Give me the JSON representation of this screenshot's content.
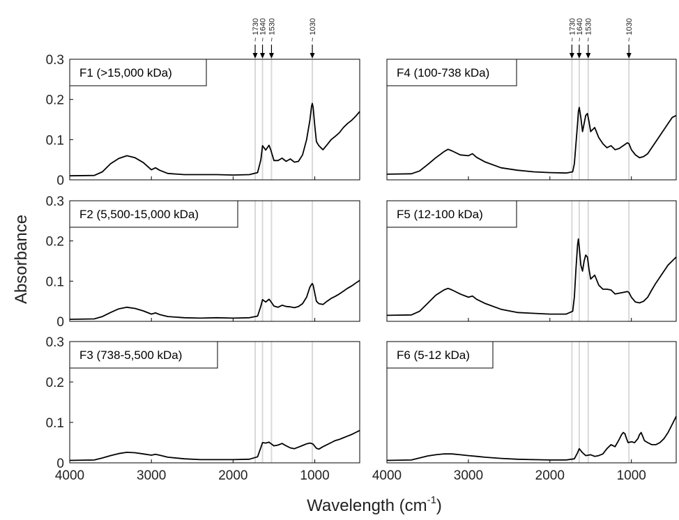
{
  "chart_data": {
    "type": "line",
    "xlabel": "Wavelength (cm",
    "xlabel_sup": "-1",
    "xlabel_close": ")",
    "ylabel": "Absorbance",
    "xlim": [
      4000,
      450
    ],
    "ylim": [
      0,
      0.3
    ],
    "x_reversed": true,
    "x_ticks": [
      4000,
      3000,
      2000,
      1000
    ],
    "y_ticks": [
      0,
      0.1,
      0.2,
      0.3
    ],
    "x_tick_labels": [
      "4000",
      "3000",
      "2000",
      "1000"
    ],
    "y_tick_labels": [
      "0",
      "0.1",
      "0.2",
      "0.3"
    ],
    "reference_lines": [
      {
        "wavenumber": 1730,
        "label": "~ 1730"
      },
      {
        "wavenumber": 1640,
        "label": "~ 1640"
      },
      {
        "wavenumber": 1530,
        "label": "~ 1530"
      },
      {
        "wavenumber": 1030,
        "label": "~ 1030"
      }
    ],
    "line_color": "#000000",
    "reference_line_color": "#d9d9d9",
    "panels": [
      {
        "id": "F1",
        "label": "F1 (>15,000 kDa)",
        "column": 0,
        "row": 0,
        "x": [
          4000,
          3700,
          3600,
          3500,
          3400,
          3300,
          3200,
          3100,
          3000,
          2950,
          2900,
          2800,
          2600,
          2400,
          2200,
          2000,
          1800,
          1700,
          1660,
          1640,
          1600,
          1560,
          1540,
          1500,
          1450,
          1400,
          1350,
          1300,
          1250,
          1200,
          1150,
          1100,
          1060,
          1040,
          1030,
          1020,
          1000,
          980,
          950,
          900,
          850,
          800,
          750,
          700,
          650,
          600,
          550,
          500,
          450
        ],
        "values": [
          0.01,
          0.011,
          0.02,
          0.04,
          0.053,
          0.06,
          0.055,
          0.043,
          0.025,
          0.03,
          0.024,
          0.016,
          0.013,
          0.013,
          0.013,
          0.012,
          0.013,
          0.018,
          0.05,
          0.085,
          0.074,
          0.086,
          0.075,
          0.048,
          0.048,
          0.054,
          0.046,
          0.052,
          0.044,
          0.046,
          0.062,
          0.1,
          0.148,
          0.183,
          0.19,
          0.18,
          0.135,
          0.095,
          0.085,
          0.075,
          0.087,
          0.1,
          0.108,
          0.117,
          0.13,
          0.14,
          0.148,
          0.158,
          0.17
        ]
      },
      {
        "id": "F2",
        "label": "F2 (5,500-15,000 kDa)",
        "column": 0,
        "row": 1,
        "x": [
          4000,
          3700,
          3600,
          3500,
          3400,
          3300,
          3200,
          3100,
          3000,
          2950,
          2900,
          2800,
          2600,
          2400,
          2200,
          2000,
          1800,
          1700,
          1660,
          1640,
          1600,
          1560,
          1540,
          1500,
          1450,
          1400,
          1350,
          1300,
          1250,
          1200,
          1150,
          1100,
          1060,
          1040,
          1030,
          1020,
          1000,
          980,
          950,
          900,
          850,
          800,
          750,
          700,
          650,
          600,
          550,
          500,
          450
        ],
        "values": [
          0.005,
          0.006,
          0.012,
          0.022,
          0.031,
          0.035,
          0.032,
          0.026,
          0.018,
          0.021,
          0.017,
          0.012,
          0.009,
          0.008,
          0.009,
          0.008,
          0.009,
          0.013,
          0.038,
          0.054,
          0.048,
          0.055,
          0.05,
          0.038,
          0.035,
          0.04,
          0.037,
          0.036,
          0.034,
          0.037,
          0.044,
          0.06,
          0.085,
          0.092,
          0.094,
          0.09,
          0.07,
          0.05,
          0.044,
          0.042,
          0.05,
          0.057,
          0.062,
          0.068,
          0.075,
          0.082,
          0.088,
          0.095,
          0.102
        ]
      },
      {
        "id": "F3",
        "label": "F3 (738-5,500 kDa)",
        "column": 0,
        "row": 2,
        "x": [
          4000,
          3700,
          3600,
          3500,
          3400,
          3300,
          3200,
          3100,
          3000,
          2950,
          2900,
          2800,
          2600,
          2400,
          2200,
          2000,
          1800,
          1700,
          1660,
          1640,
          1600,
          1560,
          1540,
          1500,
          1450,
          1400,
          1350,
          1300,
          1250,
          1200,
          1150,
          1100,
          1060,
          1040,
          1030,
          1020,
          1000,
          980,
          950,
          900,
          850,
          800,
          750,
          700,
          650,
          600,
          550,
          500,
          450
        ],
        "values": [
          0.006,
          0.007,
          0.012,
          0.018,
          0.023,
          0.026,
          0.025,
          0.022,
          0.019,
          0.021,
          0.019,
          0.014,
          0.01,
          0.008,
          0.008,
          0.008,
          0.009,
          0.015,
          0.038,
          0.05,
          0.049,
          0.051,
          0.048,
          0.042,
          0.044,
          0.048,
          0.042,
          0.037,
          0.035,
          0.039,
          0.043,
          0.047,
          0.049,
          0.048,
          0.047,
          0.046,
          0.041,
          0.036,
          0.034,
          0.04,
          0.045,
          0.05,
          0.055,
          0.058,
          0.062,
          0.066,
          0.07,
          0.075,
          0.08
        ]
      },
      {
        "id": "F4",
        "label": "F4 (100-738 kDa)",
        "column": 1,
        "row": 0,
        "x": [
          4000,
          3700,
          3600,
          3500,
          3400,
          3300,
          3250,
          3200,
          3100,
          3000,
          2950,
          2900,
          2800,
          2600,
          2400,
          2200,
          2000,
          1800,
          1720,
          1700,
          1680,
          1660,
          1650,
          1640,
          1620,
          1600,
          1580,
          1560,
          1540,
          1520,
          1500,
          1450,
          1400,
          1350,
          1300,
          1250,
          1200,
          1150,
          1100,
          1050,
          1030,
          1000,
          950,
          900,
          850,
          800,
          750,
          700,
          650,
          600,
          550,
          500,
          450
        ],
        "values": [
          0.014,
          0.015,
          0.022,
          0.038,
          0.055,
          0.07,
          0.076,
          0.072,
          0.062,
          0.06,
          0.065,
          0.056,
          0.045,
          0.03,
          0.024,
          0.02,
          0.018,
          0.017,
          0.02,
          0.04,
          0.09,
          0.14,
          0.17,
          0.18,
          0.155,
          0.12,
          0.14,
          0.16,
          0.165,
          0.145,
          0.12,
          0.13,
          0.105,
          0.09,
          0.08,
          0.085,
          0.075,
          0.078,
          0.085,
          0.092,
          0.09,
          0.075,
          0.062,
          0.055,
          0.058,
          0.065,
          0.08,
          0.095,
          0.11,
          0.125,
          0.14,
          0.155,
          0.16
        ]
      },
      {
        "id": "F5",
        "label": "F5 (12-100 kDa)",
        "column": 1,
        "row": 1,
        "x": [
          4000,
          3700,
          3600,
          3500,
          3400,
          3300,
          3250,
          3200,
          3100,
          3000,
          2950,
          2900,
          2800,
          2600,
          2400,
          2200,
          2000,
          1800,
          1720,
          1700,
          1680,
          1660,
          1650,
          1640,
          1620,
          1600,
          1580,
          1560,
          1540,
          1520,
          1500,
          1450,
          1400,
          1350,
          1300,
          1250,
          1200,
          1150,
          1100,
          1050,
          1030,
          1000,
          950,
          900,
          850,
          800,
          750,
          700,
          650,
          600,
          550,
          500,
          450
        ],
        "values": [
          0.015,
          0.016,
          0.025,
          0.045,
          0.065,
          0.078,
          0.082,
          0.078,
          0.068,
          0.06,
          0.063,
          0.055,
          0.045,
          0.03,
          0.022,
          0.02,
          0.018,
          0.018,
          0.025,
          0.06,
          0.13,
          0.19,
          0.205,
          0.185,
          0.14,
          0.125,
          0.15,
          0.165,
          0.16,
          0.13,
          0.105,
          0.115,
          0.09,
          0.08,
          0.08,
          0.078,
          0.068,
          0.07,
          0.072,
          0.074,
          0.072,
          0.06,
          0.048,
          0.046,
          0.05,
          0.06,
          0.078,
          0.095,
          0.11,
          0.125,
          0.14,
          0.15,
          0.16
        ]
      },
      {
        "id": "F6",
        "label": "F6 (5-12 kDa)",
        "column": 1,
        "row": 2,
        "x": [
          4000,
          3700,
          3600,
          3500,
          3400,
          3300,
          3200,
          3100,
          3000,
          2900,
          2800,
          2600,
          2400,
          2200,
          2000,
          1800,
          1700,
          1660,
          1640,
          1620,
          1600,
          1560,
          1500,
          1450,
          1400,
          1350,
          1300,
          1250,
          1200,
          1150,
          1120,
          1100,
          1080,
          1060,
          1040,
          1000,
          960,
          940,
          920,
          900,
          880,
          860,
          840,
          800,
          750,
          700,
          650,
          600,
          550,
          500,
          450
        ],
        "values": [
          0.006,
          0.007,
          0.012,
          0.017,
          0.02,
          0.022,
          0.022,
          0.02,
          0.018,
          0.016,
          0.014,
          0.011,
          0.009,
          0.008,
          0.007,
          0.007,
          0.01,
          0.025,
          0.035,
          0.03,
          0.025,
          0.018,
          0.02,
          0.016,
          0.018,
          0.022,
          0.035,
          0.045,
          0.04,
          0.058,
          0.07,
          0.075,
          0.072,
          0.06,
          0.05,
          0.052,
          0.05,
          0.055,
          0.06,
          0.07,
          0.075,
          0.065,
          0.055,
          0.05,
          0.045,
          0.045,
          0.05,
          0.06,
          0.075,
          0.095,
          0.115
        ]
      }
    ]
  }
}
